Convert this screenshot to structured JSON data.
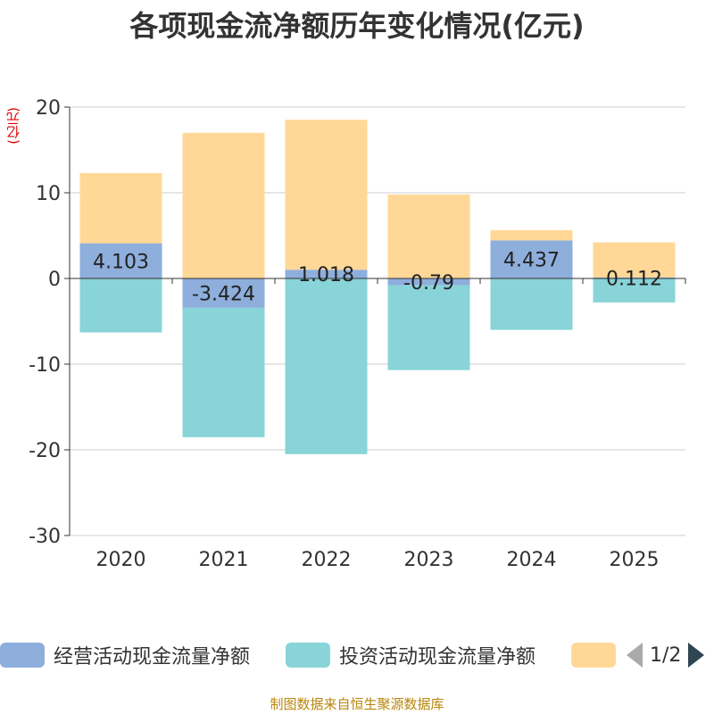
{
  "chart_data": {
    "type": "bar",
    "stacked": true,
    "title": "各项现金流净额历年变化情况(亿元)",
    "ylabel": "(亿元)",
    "xlabel": "",
    "categories": [
      "2020",
      "2021",
      "2022",
      "2023",
      "2024",
      "2025"
    ],
    "ylim": [
      -30,
      20
    ],
    "yticks": [
      -30,
      -20,
      -10,
      0,
      10,
      20
    ],
    "grid": true,
    "series": [
      {
        "name": "经营活动现金流量净额",
        "color": "#8eaedc",
        "values": [
          4.103,
          -3.424,
          1.018,
          -0.79,
          4.437,
          0.112
        ],
        "labels": [
          "4.103",
          "-3.424",
          "1.018",
          "-0.79",
          "4.437",
          "0.112"
        ]
      },
      {
        "name": "投资活动现金流量净额",
        "color": "#88d4d8",
        "values": [
          -6.3,
          -15.1,
          -20.5,
          -9.9,
          -6.0,
          -2.8
        ]
      },
      {
        "name": "",
        "color": "#ffd898",
        "values": [
          8.2,
          17.0,
          17.5,
          9.8,
          1.2,
          4.1
        ]
      }
    ]
  },
  "legend": {
    "items": [
      {
        "label": "经营活动现金流量净额",
        "color": "#8eaedc"
      },
      {
        "label": "投资活动现金流量净额",
        "color": "#88d4d8"
      },
      {
        "label": "",
        "color": "#ffd898"
      }
    ],
    "pager": "1/2"
  },
  "source": "制图数据来自恒生聚源数据库"
}
